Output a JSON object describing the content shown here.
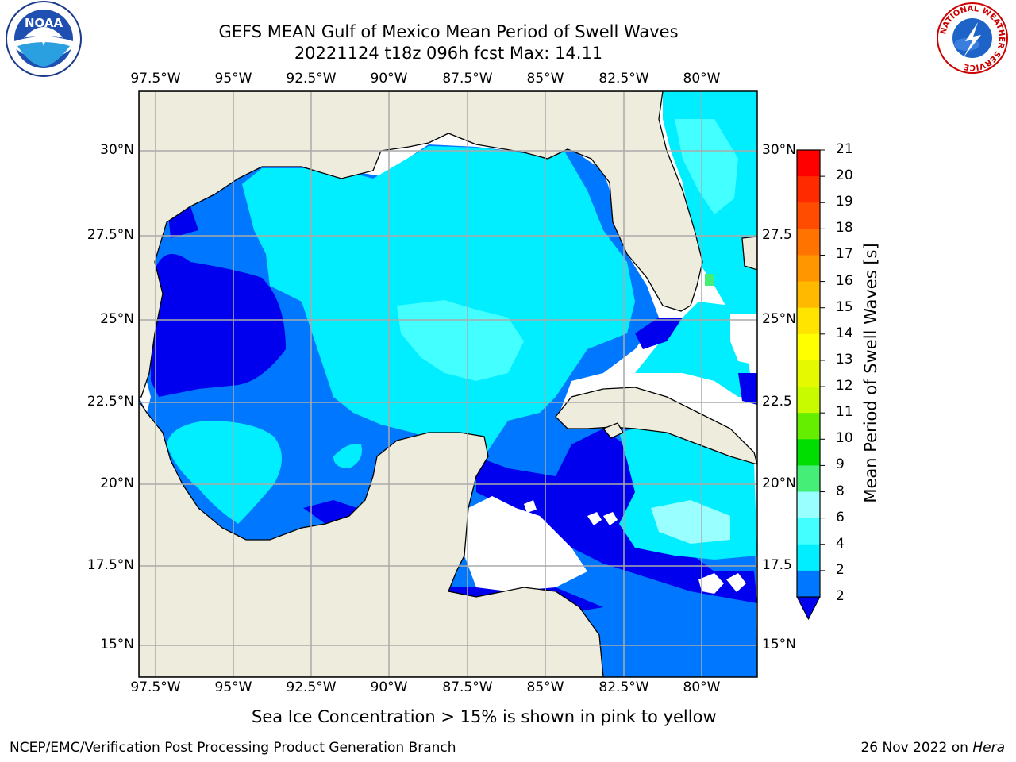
{
  "title": {
    "line1": "GEFS MEAN Gulf of Mexico Mean Period of Swell Waves",
    "line2": "20221124 t18z 096h fcst   Max: 14.11"
  },
  "map": {
    "lon_labels": [
      "97.5°W",
      "95°W",
      "92.5°W",
      "90°W",
      "87.5°W",
      "85°W",
      "82.5°W",
      "80°W"
    ],
    "lat_labels_left": [
      "30°N",
      "27.5°N",
      "25°N",
      "22.5°N",
      "20°N",
      "17.5°N",
      "15°N"
    ],
    "lat_labels_right": [
      "30°N",
      "27.5",
      "25°N",
      "22.5",
      "20°N",
      "17.5",
      "15°N"
    ],
    "land_color": "#eeecdc",
    "colors": {
      "lt2": "#0000ee",
      "c2_4": "#0077ff",
      "c4_6": "#00eeff",
      "c6_8": "#44ffff",
      "c8_9": "#99ffff",
      "c9_10": "#44ee77",
      "c10_11": "#00dd00",
      "c11_12": "#66ee00",
      "c12_13": "#ccff00"
    }
  },
  "colorbar": {
    "title": "Mean Period of Swell Waves [s]",
    "labels": [
      "21",
      "20",
      "19",
      "18",
      "17",
      "16",
      "15",
      "14",
      "13",
      "12",
      "11",
      "10",
      "9",
      "8",
      "6",
      "4",
      "2"
    ],
    "colors": [
      "#ff0000",
      "#ff2a00",
      "#ff4c00",
      "#ff7400",
      "#ff9600",
      "#ffba00",
      "#ffe400",
      "#ffff00",
      "#e5fa00",
      "#c8fa00",
      "#66ee00",
      "#00dd00",
      "#44ee77",
      "#99ffff",
      "#44ffff",
      "#00eeff",
      "#0077ff"
    ],
    "under_color": "#0000ee"
  },
  "caption": "Sea Ice Concentration > 15% is shown in pink to yellow",
  "footer": {
    "left": "NCEP/EMC/Verification Post Processing Product Generation Branch",
    "right_date": "26 Nov 2022 on ",
    "right_host": "Hera"
  },
  "logos": {
    "noaa": "NOAA",
    "nws_ring": "NATIONAL WEATHER SERVICE"
  }
}
